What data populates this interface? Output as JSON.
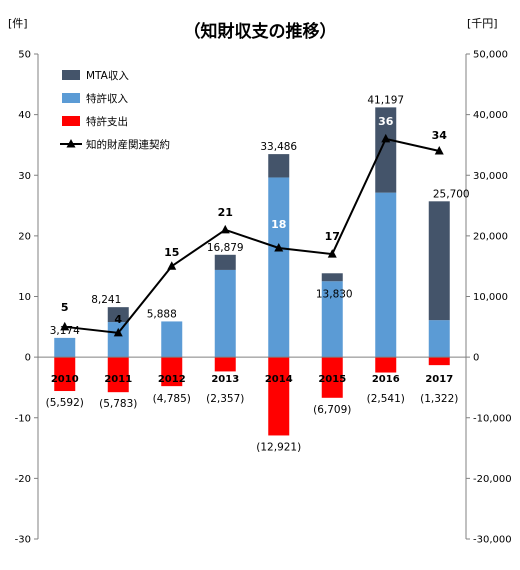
{
  "chart_data": {
    "type": "bar",
    "title": "（知財収支の推移）",
    "left_unit": "[件]",
    "right_unit": "[千円]",
    "categories": [
      "2010",
      "2011",
      "2012",
      "2013",
      "2014",
      "2015",
      "2016",
      "2017"
    ],
    "series": [
      {
        "name": "MTA収入",
        "axis": "right",
        "values": [
          0,
          2457,
          0,
          2497,
          3851,
          1314,
          14062,
          19600
        ],
        "color": "#44546a"
      },
      {
        "name": "特許収入",
        "axis": "right",
        "values": [
          3174,
          5784,
          5888,
          14382,
          29635,
          12516,
          27135,
          6100
        ],
        "color": "#5b9bd5"
      },
      {
        "name": "特許支出",
        "axis": "right",
        "values": [
          -5592,
          -5783,
          -4785,
          -2357,
          -12921,
          -6709,
          -2541,
          -1322
        ],
        "color": "#ff0000"
      },
      {
        "name": "知的財産関連契約",
        "axis": "left",
        "type": "line",
        "values": [
          5,
          4,
          15,
          21,
          18,
          17,
          36,
          34
        ],
        "color": "#000000"
      }
    ],
    "income_total_labels": [
      "3,174",
      "8,241",
      "5,888",
      "16,879",
      "33,486",
      "13,830",
      "41,197",
      "25,700"
    ],
    "expense_labels": [
      "(5,592)",
      "(5,783)",
      "(4,785)",
      "(2,357)",
      "(12,921)",
      "(6,709)",
      "(2,541)",
      "(1,322)"
    ],
    "contract_labels": [
      "5",
      "4",
      "15",
      "21",
      "18",
      "17",
      "36",
      "34"
    ],
    "left_axis": {
      "min": -30,
      "max": 50,
      "step": 10,
      "tick_labels": [
        "-30",
        "-20",
        "-10",
        "0",
        "10",
        "20",
        "30",
        "40",
        "50"
      ]
    },
    "right_axis": {
      "min": -30000,
      "max": 50000,
      "step": 10000,
      "tick_labels": [
        "-30,000",
        "-20,000",
        "-10,000",
        "0",
        "10,000",
        "20,000",
        "30,000",
        "40,000",
        "50,000"
      ]
    },
    "legend_position": "top-left",
    "grid": false
  }
}
